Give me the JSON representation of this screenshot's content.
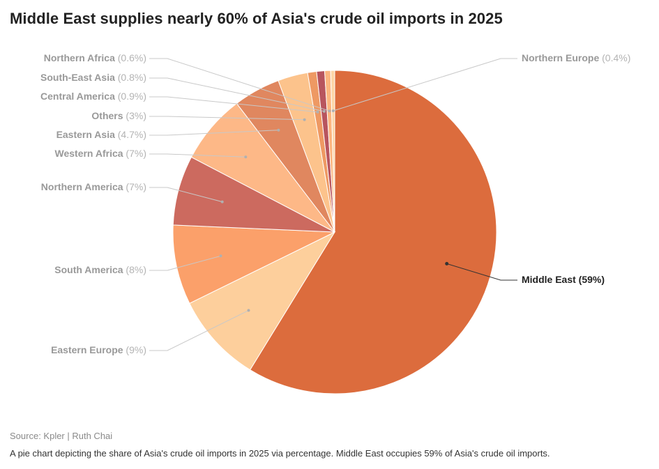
{
  "title": "Middle East supplies nearly 60% of Asia's crude oil imports in 2025",
  "source": "Source: Kpler | Ruth Chai",
  "caption": "A pie chart depicting the share of Asia's crude oil imports in 2025 via percentage. Middle East occupies 59% of Asia's crude oil imports.",
  "chart_data": {
    "type": "pie",
    "title": "Middle East supplies nearly 60% of Asia's crude oil imports in 2025",
    "slices": [
      {
        "name": "Middle East",
        "value": 59,
        "label": "Middle East",
        "value_label": "(59%)",
        "color": "#dc6c3d",
        "highlight": true
      },
      {
        "name": "Eastern Europe",
        "value": 9,
        "label": "Eastern Europe",
        "value_label": "(9%)",
        "color": "#fdcf9c",
        "highlight": false
      },
      {
        "name": "South America",
        "value": 8,
        "label": "South America",
        "value_label": "(8%)",
        "color": "#fba06a",
        "highlight": false
      },
      {
        "name": "Northern America",
        "value": 7,
        "label": "Northern America",
        "value_label": "(7%)",
        "color": "#cc6a5f",
        "highlight": false
      },
      {
        "name": "Western Africa",
        "value": 7,
        "label": "Western Africa",
        "value_label": "(7%)",
        "color": "#fdb887",
        "highlight": false
      },
      {
        "name": "Eastern Asia",
        "value": 4.7,
        "label": "Eastern Asia",
        "value_label": "(4.7%)",
        "color": "#e0875f",
        "highlight": false
      },
      {
        "name": "Others",
        "value": 3,
        "label": "Others",
        "value_label": "(3%)",
        "color": "#fcc38c",
        "highlight": false
      },
      {
        "name": "Central America",
        "value": 0.9,
        "label": "Central America",
        "value_label": "(0.9%)",
        "color": "#ee9963",
        "highlight": false
      },
      {
        "name": "South-East Asia",
        "value": 0.8,
        "label": "South-East Asia",
        "value_label": "(0.8%)",
        "color": "#b8555e",
        "highlight": false
      },
      {
        "name": "Northern Africa",
        "value": 0.6,
        "label": "Northern Africa",
        "value_label": "(0.6%)",
        "color": "#fcb57f",
        "highlight": false
      },
      {
        "name": "Northern Europe",
        "value": 0.4,
        "label": "Northern Europe",
        "value_label": "(0.4%)",
        "color": "#fdd5a6",
        "highlight": false
      }
    ],
    "legend": "none",
    "label_placement": "outside-with-leader-lines"
  }
}
